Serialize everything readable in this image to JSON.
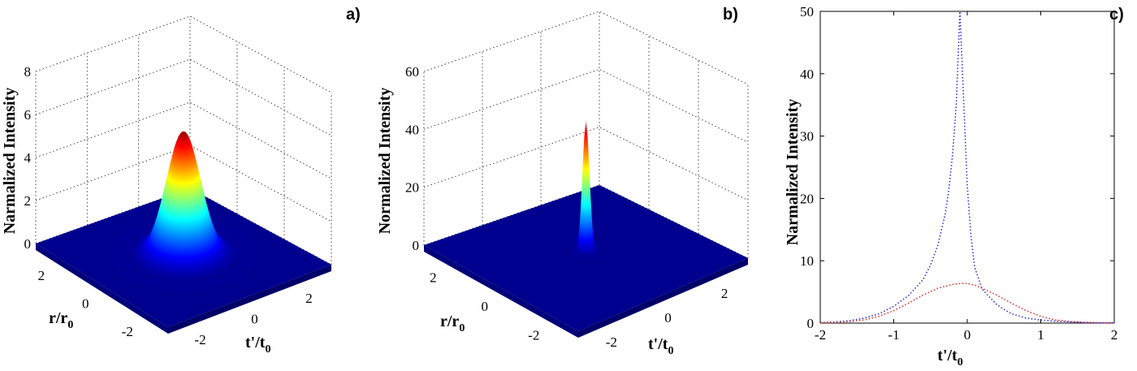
{
  "chart_data": [
    {
      "id": "a",
      "type": "surface",
      "panel_label": "a)",
      "zlabel": "Narmalized Intensity",
      "xlabel_base": "r/r",
      "xlabel_sub": "0",
      "ylabel_base": "t'/t",
      "ylabel_sub": "0",
      "zlim": [
        0,
        8
      ],
      "zticks": [
        "0",
        "2",
        "4",
        "6",
        "8"
      ],
      "zticks_values": [
        0,
        2,
        4,
        6,
        8
      ],
      "rticks": [
        "2",
        "0",
        "-2"
      ],
      "rticks_values": [
        2,
        0,
        -2
      ],
      "tticks": [
        "-2",
        "0",
        "2"
      ],
      "tticks_values": [
        -2,
        0,
        2
      ],
      "xlim": [
        -3,
        3
      ],
      "ylim": [
        -3,
        3
      ],
      "peak": 5.7,
      "width": 0.6,
      "colormap": "jet"
    },
    {
      "id": "b",
      "type": "surface",
      "panel_label": "b)",
      "zlabel": "Normalized Intensity",
      "xlabel_base": "r/r",
      "xlabel_sub": "0",
      "ylabel_base": "t'/t",
      "ylabel_sub": "0",
      "zlim": [
        0,
        60
      ],
      "zticks": [
        "0",
        "20",
        "40",
        "60"
      ],
      "zticks_values": [
        0,
        20,
        40,
        60
      ],
      "rticks": [
        "2",
        "0",
        "-2"
      ],
      "rticks_values": [
        2,
        0,
        -2
      ],
      "tticks": [
        "-2",
        "0",
        "2"
      ],
      "tticks_values": [
        -2,
        0,
        2
      ],
      "xlim": [
        -3,
        3
      ],
      "ylim": [
        -3,
        3
      ],
      "peak": 45,
      "width": 0.12,
      "colormap": "jet"
    },
    {
      "id": "c",
      "type": "line",
      "panel_label": "c)",
      "ylabel": "Narmalized Intensity",
      "xlabel_base": "t'/t",
      "xlabel_sub": "0",
      "xlim": [
        -2,
        2
      ],
      "ylim": [
        0,
        50
      ],
      "xticks": [
        "-2",
        "-1",
        "0",
        "1",
        "2"
      ],
      "xticks_values": [
        -2,
        -1,
        0,
        1,
        2
      ],
      "yticks": [
        "0",
        "10",
        "20",
        "30",
        "40",
        "50"
      ],
      "yticks_values": [
        0,
        10,
        20,
        30,
        40,
        50
      ],
      "series": [
        {
          "color": "#3333dd",
          "style": "dotted",
          "x": [
            -2,
            -1.8,
            -1.6,
            -1.4,
            -1.2,
            -1.0,
            -0.8,
            -0.6,
            -0.5,
            -0.4,
            -0.3,
            -0.25,
            -0.2,
            -0.15,
            -0.1,
            -0.05,
            0,
            0.05,
            0.1,
            0.2,
            0.3,
            0.4,
            0.5,
            0.6,
            0.8,
            1.0,
            1.2,
            1.4,
            1.6,
            1.8,
            2
          ],
          "y": [
            0.1,
            0.2,
            0.4,
            0.8,
            1.5,
            2.7,
            4.4,
            7.0,
            9.3,
            12.5,
            17.5,
            21.5,
            27,
            35,
            50,
            36,
            22,
            14,
            9,
            5.5,
            4.2,
            3.0,
            2.2,
            1.5,
            0.8,
            0.5,
            0.3,
            0.2,
            0.1,
            0.05,
            0.02
          ]
        },
        {
          "color": "#dd3333",
          "style": "dotted",
          "x": [
            -2,
            -1.8,
            -1.6,
            -1.4,
            -1.2,
            -1.0,
            -0.8,
            -0.6,
            -0.4,
            -0.2,
            -0.1,
            0,
            0.1,
            0.2,
            0.4,
            0.6,
            0.8,
            1.0,
            1.2,
            1.4,
            1.6,
            1.8,
            2
          ],
          "y": [
            0.05,
            0.1,
            0.25,
            0.5,
            1.1,
            2.0,
            3.2,
            4.5,
            5.6,
            6.2,
            6.35,
            6.35,
            6.1,
            5.6,
            4.5,
            3.2,
            2.0,
            1.1,
            0.5,
            0.25,
            0.1,
            0.05,
            0.02
          ]
        }
      ]
    }
  ]
}
